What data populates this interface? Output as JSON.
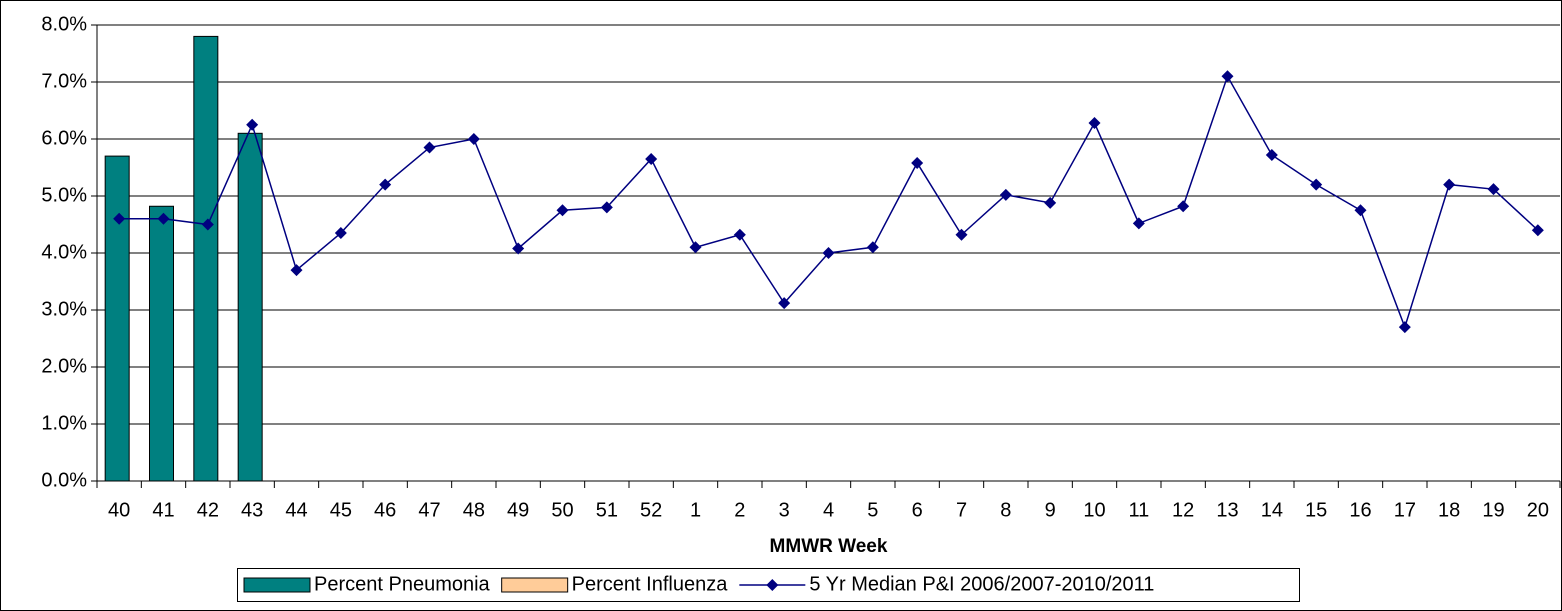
{
  "chart_data": {
    "type": "bar-line",
    "x_label": "MMWR Week",
    "categories": [
      "40",
      "41",
      "42",
      "43",
      "44",
      "45",
      "46",
      "47",
      "48",
      "49",
      "50",
      "51",
      "52",
      "1",
      "2",
      "3",
      "4",
      "5",
      "6",
      "7",
      "8",
      "9",
      "10",
      "11",
      "12",
      "13",
      "14",
      "15",
      "16",
      "17",
      "18",
      "19",
      "20"
    ],
    "series": [
      {
        "name": "Percent Pneumonia",
        "type": "bar",
        "color": "#008080",
        "values": [
          5.7,
          4.82,
          7.8,
          6.1,
          null,
          null,
          null,
          null,
          null,
          null,
          null,
          null,
          null,
          null,
          null,
          null,
          null,
          null,
          null,
          null,
          null,
          null,
          null,
          null,
          null,
          null,
          null,
          null,
          null,
          null,
          null,
          null,
          null
        ]
      },
      {
        "name": "Percent Influenza",
        "type": "bar",
        "color": "#ffcc99",
        "values": [
          null,
          null,
          null,
          null,
          null,
          null,
          null,
          null,
          null,
          null,
          null,
          null,
          null,
          null,
          null,
          null,
          null,
          null,
          null,
          null,
          null,
          null,
          null,
          null,
          null,
          null,
          null,
          null,
          null,
          null,
          null,
          null,
          null
        ]
      },
      {
        "name": "5 Yr Median P&I 2006/2007-2010/2011",
        "type": "line",
        "color": "#000080",
        "values": [
          4.6,
          4.6,
          4.5,
          6.25,
          3.7,
          4.35,
          5.2,
          5.85,
          6.0,
          4.08,
          4.75,
          4.8,
          5.65,
          4.1,
          4.32,
          3.12,
          4.0,
          4.1,
          5.58,
          4.32,
          5.02,
          4.88,
          6.28,
          4.52,
          4.82,
          7.1,
          5.72,
          5.2,
          4.75,
          2.7,
          5.2,
          5.12,
          4.4
        ]
      }
    ],
    "ylim": [
      0,
      8
    ],
    "yticks": [
      {
        "value": 0,
        "label": "0.0%"
      },
      {
        "value": 1,
        "label": "1.0%"
      },
      {
        "value": 2,
        "label": "2.0%"
      },
      {
        "value": 3,
        "label": "3.0%"
      },
      {
        "value": 4,
        "label": "4.0%"
      },
      {
        "value": 5,
        "label": "5.0%"
      },
      {
        "value": 6,
        "label": "6.0%"
      },
      {
        "value": 7,
        "label": "7.0%"
      },
      {
        "value": 8,
        "label": "8.0%"
      }
    ],
    "grid": true,
    "legend": "bottom"
  }
}
